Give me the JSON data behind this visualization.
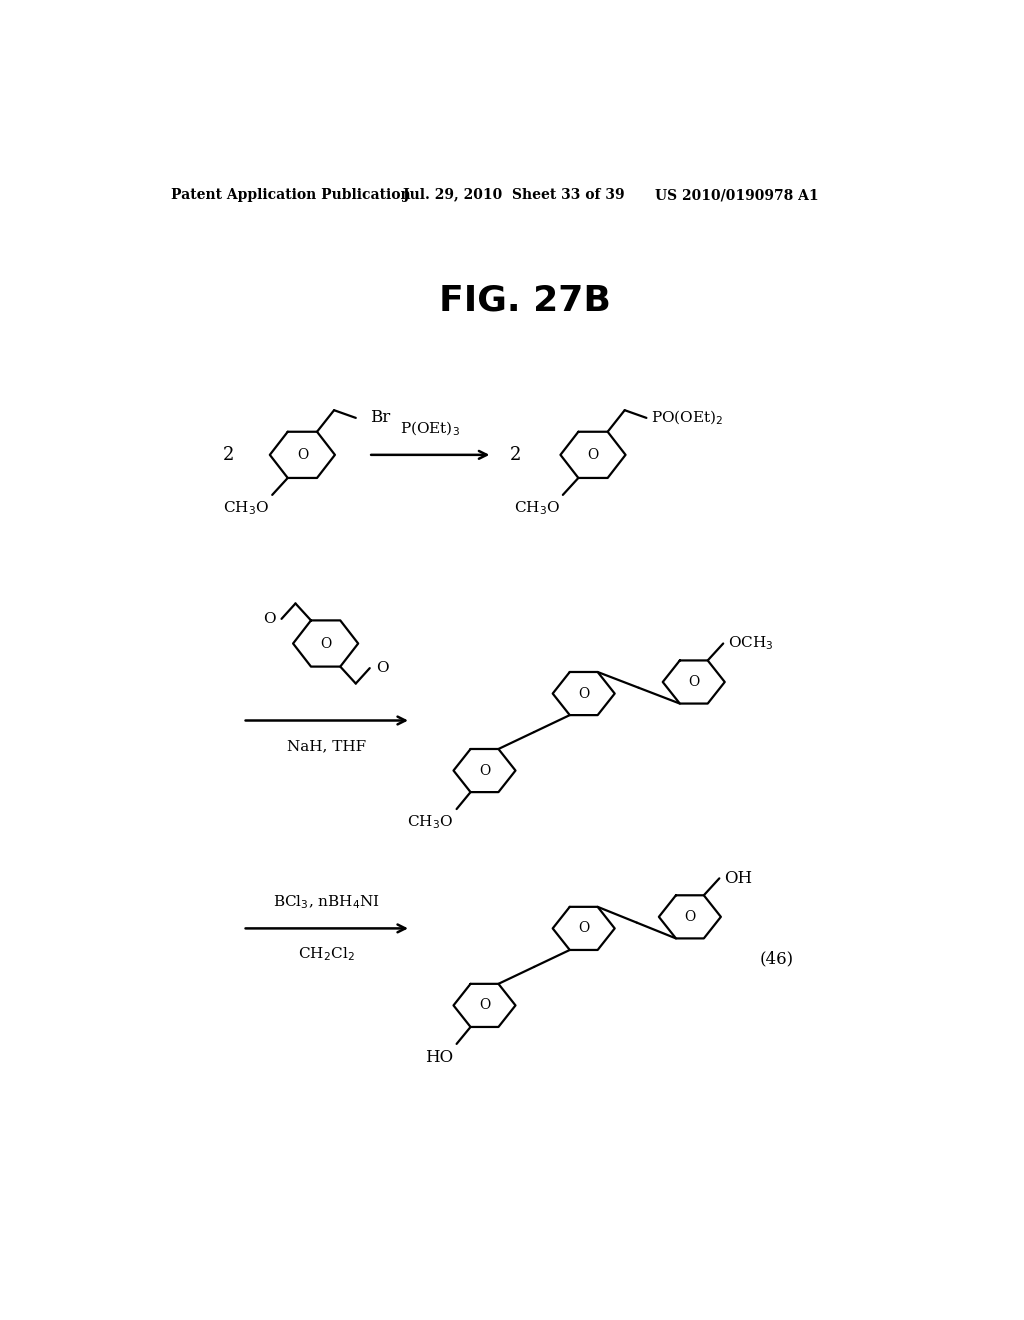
{
  "title": "FIG. 27B",
  "header_left": "Patent Application Publication",
  "header_mid": "Jul. 29, 2010  Sheet 33 of 39",
  "header_right": "US 2010/0190978 A1",
  "bg_color": "#ffffff",
  "line_color": "#000000",
  "title_fontsize": 26,
  "header_fontsize": 10,
  "chem_fontsize": 11
}
